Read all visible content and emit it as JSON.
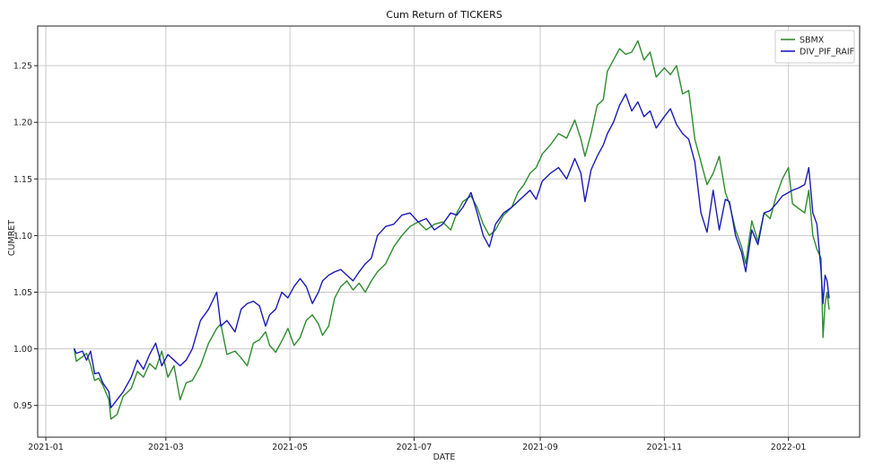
{
  "chart_data": {
    "type": "line",
    "title": "Cum Return of TICKERS",
    "xlabel": "DATE",
    "ylabel": "CUMRET",
    "xlim": [
      "2020-12-28",
      "2022-02-05"
    ],
    "ylim": [
      0.922,
      1.285
    ],
    "grid": true,
    "legend_position": "top-right",
    "x_ticks": [
      "2021-01-01",
      "2021-03-01",
      "2021-05-01",
      "2021-07-01",
      "2021-09-01",
      "2021-11-01",
      "2022-01-01"
    ],
    "x_tick_labels": [
      "2021-01",
      "2021-03",
      "2021-05",
      "2021-07",
      "2021-09",
      "2021-11",
      "2022-01"
    ],
    "y_ticks": [
      0.95,
      1.0,
      1.05,
      1.1,
      1.15,
      1.2,
      1.25
    ],
    "y_tick_labels": [
      "0.95",
      "1.00",
      "1.05",
      "1.10",
      "1.15",
      "1.20",
      "1.25"
    ],
    "series": [
      {
        "name": "SBMX",
        "color": "#2e8b2e",
        "points": [
          [
            "2021-01-15",
            0.999
          ],
          [
            "2021-01-16",
            0.989
          ],
          [
            "2021-01-19",
            0.993
          ],
          [
            "2021-01-21",
            0.996
          ],
          [
            "2021-01-23",
            0.986
          ],
          [
            "2021-01-25",
            0.972
          ],
          [
            "2021-01-27",
            0.974
          ],
          [
            "2021-01-29",
            0.968
          ],
          [
            "2021-02-01",
            0.955
          ],
          [
            "2021-02-02",
            0.938
          ],
          [
            "2021-02-05",
            0.942
          ],
          [
            "2021-02-08",
            0.958
          ],
          [
            "2021-02-12",
            0.965
          ],
          [
            "2021-02-15",
            0.98
          ],
          [
            "2021-02-18",
            0.975
          ],
          [
            "2021-02-21",
            0.987
          ],
          [
            "2021-02-24",
            0.982
          ],
          [
            "2021-02-27",
            0.998
          ],
          [
            "2021-03-02",
            0.975
          ],
          [
            "2021-03-05",
            0.985
          ],
          [
            "2021-03-08",
            0.955
          ],
          [
            "2021-03-11",
            0.97
          ],
          [
            "2021-03-14",
            0.972
          ],
          [
            "2021-03-18",
            0.985
          ],
          [
            "2021-03-22",
            1.005
          ],
          [
            "2021-03-26",
            1.018
          ],
          [
            "2021-03-28",
            1.022
          ],
          [
            "2021-03-31",
            0.995
          ],
          [
            "2021-04-04",
            0.998
          ],
          [
            "2021-04-07",
            0.992
          ],
          [
            "2021-04-10",
            0.985
          ],
          [
            "2021-04-13",
            1.005
          ],
          [
            "2021-04-16",
            1.008
          ],
          [
            "2021-04-19",
            1.015
          ],
          [
            "2021-04-21",
            1.003
          ],
          [
            "2021-04-24",
            0.997
          ],
          [
            "2021-04-27",
            1.007
          ],
          [
            "2021-04-30",
            1.018
          ],
          [
            "2021-05-03",
            1.003
          ],
          [
            "2021-05-06",
            1.01
          ],
          [
            "2021-05-09",
            1.025
          ],
          [
            "2021-05-12",
            1.03
          ],
          [
            "2021-05-15",
            1.022
          ],
          [
            "2021-05-17",
            1.012
          ],
          [
            "2021-05-20",
            1.02
          ],
          [
            "2021-05-23",
            1.045
          ],
          [
            "2021-05-26",
            1.055
          ],
          [
            "2021-05-29",
            1.06
          ],
          [
            "2021-06-01",
            1.052
          ],
          [
            "2021-06-04",
            1.058
          ],
          [
            "2021-06-07",
            1.05
          ],
          [
            "2021-06-10",
            1.06
          ],
          [
            "2021-06-13",
            1.068
          ],
          [
            "2021-06-17",
            1.075
          ],
          [
            "2021-06-21",
            1.09
          ],
          [
            "2021-06-25",
            1.1
          ],
          [
            "2021-06-29",
            1.108
          ],
          [
            "2021-07-03",
            1.112
          ],
          [
            "2021-07-07",
            1.105
          ],
          [
            "2021-07-11",
            1.11
          ],
          [
            "2021-07-15",
            1.112
          ],
          [
            "2021-07-19",
            1.105
          ],
          [
            "2021-07-22",
            1.12
          ],
          [
            "2021-07-25",
            1.13
          ],
          [
            "2021-07-29",
            1.135
          ],
          [
            "2021-08-01",
            1.125
          ],
          [
            "2021-08-04",
            1.11
          ],
          [
            "2021-08-07",
            1.1
          ],
          [
            "2021-08-10",
            1.105
          ],
          [
            "2021-08-14",
            1.118
          ],
          [
            "2021-08-18",
            1.125
          ],
          [
            "2021-08-21",
            1.138
          ],
          [
            "2021-08-24",
            1.145
          ],
          [
            "2021-08-27",
            1.155
          ],
          [
            "2021-08-30",
            1.16
          ],
          [
            "2021-09-02",
            1.172
          ],
          [
            "2021-09-06",
            1.18
          ],
          [
            "2021-09-10",
            1.19
          ],
          [
            "2021-09-14",
            1.186
          ],
          [
            "2021-09-18",
            1.202
          ],
          [
            "2021-09-21",
            1.185
          ],
          [
            "2021-09-23",
            1.17
          ],
          [
            "2021-09-26",
            1.19
          ],
          [
            "2021-09-29",
            1.215
          ],
          [
            "2021-10-02",
            1.22
          ],
          [
            "2021-10-04",
            1.245
          ],
          [
            "2021-10-07",
            1.255
          ],
          [
            "2021-10-10",
            1.265
          ],
          [
            "2021-10-13",
            1.26
          ],
          [
            "2021-10-16",
            1.262
          ],
          [
            "2021-10-19",
            1.272
          ],
          [
            "2021-10-22",
            1.255
          ],
          [
            "2021-10-25",
            1.262
          ],
          [
            "2021-10-28",
            1.24
          ],
          [
            "2021-11-01",
            1.248
          ],
          [
            "2021-11-04",
            1.242
          ],
          [
            "2021-11-07",
            1.25
          ],
          [
            "2021-11-10",
            1.225
          ],
          [
            "2021-11-13",
            1.228
          ],
          [
            "2021-11-16",
            1.185
          ],
          [
            "2021-11-19",
            1.165
          ],
          [
            "2021-11-22",
            1.145
          ],
          [
            "2021-11-25",
            1.155
          ],
          [
            "2021-11-28",
            1.17
          ],
          [
            "2021-12-01",
            1.138
          ],
          [
            "2021-12-03",
            1.128
          ],
          [
            "2021-12-06",
            1.105
          ],
          [
            "2021-12-09",
            1.09
          ],
          [
            "2021-12-11",
            1.075
          ],
          [
            "2021-12-14",
            1.113
          ],
          [
            "2021-12-17",
            1.095
          ],
          [
            "2021-12-20",
            1.12
          ],
          [
            "2021-12-23",
            1.115
          ],
          [
            "2021-12-26",
            1.135
          ],
          [
            "2021-12-29",
            1.15
          ],
          [
            "2022-01-01",
            1.16
          ],
          [
            "2022-01-03",
            1.128
          ],
          [
            "2022-01-06",
            1.124
          ],
          [
            "2022-01-09",
            1.12
          ],
          [
            "2022-01-11",
            1.14
          ],
          [
            "2022-01-13",
            1.1
          ],
          [
            "2022-01-15",
            1.088
          ],
          [
            "2022-01-17",
            1.08
          ],
          [
            "2022-01-18",
            1.01
          ],
          [
            "2022-01-19",
            1.04
          ],
          [
            "2022-01-20",
            1.05
          ],
          [
            "2022-01-21",
            1.035
          ]
        ]
      },
      {
        "name": "DIV_PIF_RAIF",
        "color": "#1a1ab8",
        "points": [
          [
            "2021-01-15",
            1.0
          ],
          [
            "2021-01-16",
            0.996
          ],
          [
            "2021-01-19",
            0.998
          ],
          [
            "2021-01-21",
            0.99
          ],
          [
            "2021-01-23",
            0.998
          ],
          [
            "2021-01-25",
            0.978
          ],
          [
            "2021-01-27",
            0.979
          ],
          [
            "2021-01-29",
            0.97
          ],
          [
            "2021-02-01",
            0.962
          ],
          [
            "2021-02-02",
            0.948
          ],
          [
            "2021-02-05",
            0.955
          ],
          [
            "2021-02-08",
            0.962
          ],
          [
            "2021-02-12",
            0.975
          ],
          [
            "2021-02-15",
            0.99
          ],
          [
            "2021-02-18",
            0.982
          ],
          [
            "2021-02-21",
            0.995
          ],
          [
            "2021-02-24",
            1.005
          ],
          [
            "2021-02-27",
            0.985
          ],
          [
            "2021-03-02",
            0.995
          ],
          [
            "2021-03-05",
            0.99
          ],
          [
            "2021-03-08",
            0.985
          ],
          [
            "2021-03-11",
            0.99
          ],
          [
            "2021-03-14",
            1.0
          ],
          [
            "2021-03-18",
            1.025
          ],
          [
            "2021-03-22",
            1.035
          ],
          [
            "2021-03-26",
            1.05
          ],
          [
            "2021-03-28",
            1.02
          ],
          [
            "2021-03-31",
            1.025
          ],
          [
            "2021-04-04",
            1.015
          ],
          [
            "2021-04-07",
            1.035
          ],
          [
            "2021-04-10",
            1.04
          ],
          [
            "2021-04-13",
            1.042
          ],
          [
            "2021-04-16",
            1.038
          ],
          [
            "2021-04-19",
            1.02
          ],
          [
            "2021-04-21",
            1.03
          ],
          [
            "2021-04-24",
            1.035
          ],
          [
            "2021-04-27",
            1.05
          ],
          [
            "2021-04-30",
            1.045
          ],
          [
            "2021-05-03",
            1.055
          ],
          [
            "2021-05-06",
            1.062
          ],
          [
            "2021-05-09",
            1.055
          ],
          [
            "2021-05-12",
            1.04
          ],
          [
            "2021-05-15",
            1.05
          ],
          [
            "2021-05-17",
            1.06
          ],
          [
            "2021-05-20",
            1.065
          ],
          [
            "2021-05-23",
            1.068
          ],
          [
            "2021-05-26",
            1.07
          ],
          [
            "2021-05-29",
            1.065
          ],
          [
            "2021-06-01",
            1.06
          ],
          [
            "2021-06-04",
            1.068
          ],
          [
            "2021-06-07",
            1.075
          ],
          [
            "2021-06-10",
            1.08
          ],
          [
            "2021-06-13",
            1.1
          ],
          [
            "2021-06-17",
            1.108
          ],
          [
            "2021-06-21",
            1.11
          ],
          [
            "2021-06-25",
            1.118
          ],
          [
            "2021-06-29",
            1.12
          ],
          [
            "2021-07-03",
            1.112
          ],
          [
            "2021-07-07",
            1.115
          ],
          [
            "2021-07-11",
            1.105
          ],
          [
            "2021-07-15",
            1.11
          ],
          [
            "2021-07-19",
            1.12
          ],
          [
            "2021-07-22",
            1.118
          ],
          [
            "2021-07-25",
            1.125
          ],
          [
            "2021-07-29",
            1.138
          ],
          [
            "2021-08-01",
            1.12
          ],
          [
            "2021-08-04",
            1.1
          ],
          [
            "2021-08-07",
            1.09
          ],
          [
            "2021-08-10",
            1.11
          ],
          [
            "2021-08-14",
            1.12
          ],
          [
            "2021-08-18",
            1.125
          ],
          [
            "2021-08-21",
            1.13
          ],
          [
            "2021-08-24",
            1.135
          ],
          [
            "2021-08-27",
            1.14
          ],
          [
            "2021-08-30",
            1.132
          ],
          [
            "2021-09-02",
            1.148
          ],
          [
            "2021-09-06",
            1.155
          ],
          [
            "2021-09-10",
            1.16
          ],
          [
            "2021-09-14",
            1.15
          ],
          [
            "2021-09-18",
            1.168
          ],
          [
            "2021-09-21",
            1.155
          ],
          [
            "2021-09-23",
            1.13
          ],
          [
            "2021-09-26",
            1.158
          ],
          [
            "2021-09-29",
            1.17
          ],
          [
            "2021-10-02",
            1.18
          ],
          [
            "2021-10-04",
            1.19
          ],
          [
            "2021-10-07",
            1.2
          ],
          [
            "2021-10-10",
            1.215
          ],
          [
            "2021-10-13",
            1.225
          ],
          [
            "2021-10-16",
            1.21
          ],
          [
            "2021-10-19",
            1.218
          ],
          [
            "2021-10-22",
            1.205
          ],
          [
            "2021-10-25",
            1.21
          ],
          [
            "2021-10-28",
            1.195
          ],
          [
            "2021-11-01",
            1.205
          ],
          [
            "2021-11-04",
            1.212
          ],
          [
            "2021-11-07",
            1.198
          ],
          [
            "2021-11-10",
            1.19
          ],
          [
            "2021-11-13",
            1.185
          ],
          [
            "2021-11-16",
            1.165
          ],
          [
            "2021-11-19",
            1.12
          ],
          [
            "2021-11-22",
            1.103
          ],
          [
            "2021-11-25",
            1.14
          ],
          [
            "2021-11-28",
            1.105
          ],
          [
            "2021-12-01",
            1.132
          ],
          [
            "2021-12-03",
            1.13
          ],
          [
            "2021-12-06",
            1.1
          ],
          [
            "2021-12-09",
            1.085
          ],
          [
            "2021-12-11",
            1.068
          ],
          [
            "2021-12-14",
            1.105
          ],
          [
            "2021-12-17",
            1.092
          ],
          [
            "2021-12-20",
            1.12
          ],
          [
            "2021-12-23",
            1.122
          ],
          [
            "2021-12-26",
            1.128
          ],
          [
            "2021-12-29",
            1.135
          ],
          [
            "2022-01-01",
            1.138
          ],
          [
            "2022-01-03",
            1.14
          ],
          [
            "2022-01-06",
            1.142
          ],
          [
            "2022-01-09",
            1.145
          ],
          [
            "2022-01-11",
            1.16
          ],
          [
            "2022-01-13",
            1.12
          ],
          [
            "2022-01-15",
            1.11
          ],
          [
            "2022-01-17",
            1.07
          ],
          [
            "2022-01-18",
            1.04
          ],
          [
            "2022-01-19",
            1.065
          ],
          [
            "2022-01-20",
            1.06
          ],
          [
            "2022-01-21",
            1.045
          ]
        ]
      }
    ]
  }
}
